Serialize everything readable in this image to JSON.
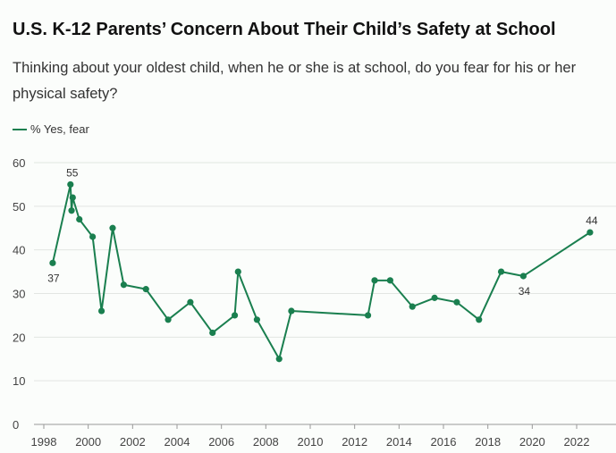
{
  "title": "U.S. K-12 Parents’ Concern About Their Child’s Safety at School",
  "subtitle": "Thinking about your oldest child, when he or she is at school, do you fear for his or her physical safety?",
  "chart_data": {
    "type": "line",
    "title": "U.S. K-12 Parents’ Concern About Their Child’s Safety at School",
    "xlabel": "",
    "ylabel": "",
    "xlim": [
      1998,
      2023.5
    ],
    "ylim": [
      0,
      60
    ],
    "grid": true,
    "legend_placement": "top-left",
    "color": "#1a7f4f",
    "x_ticks": [
      1998,
      2000,
      2002,
      2004,
      2006,
      2008,
      2010,
      2012,
      2014,
      2016,
      2018,
      2020,
      2022
    ],
    "y_ticks": [
      0,
      10,
      20,
      30,
      40,
      50,
      60
    ],
    "series": [
      {
        "name": "% Yes, fear",
        "x": [
          1998.4,
          1999.2,
          1999.25,
          1999.3,
          1999.6,
          2000.2,
          2000.6,
          2001.1,
          2001.6,
          2002.6,
          2003.6,
          2004.6,
          2005.6,
          2006.6,
          2006.75,
          2007.6,
          2008.6,
          2009.15,
          2012.6,
          2012.9,
          2013.6,
          2014.6,
          2015.6,
          2016.6,
          2017.6,
          2018.6,
          2019.6,
          2022.6
        ],
        "values": [
          37,
          55,
          49,
          52,
          47,
          43,
          26,
          45,
          32,
          31,
          24,
          28,
          21,
          25,
          35,
          24,
          15,
          26,
          25,
          33,
          33,
          27,
          29,
          28,
          24,
          35,
          34,
          44
        ]
      }
    ],
    "annotations": [
      {
        "x": 1998.4,
        "value": 37,
        "text": "37",
        "pos": "below"
      },
      {
        "x": 1999.2,
        "value": 55,
        "text": "55",
        "pos": "above"
      },
      {
        "x": 2019.6,
        "value": 34,
        "text": "34",
        "pos": "below"
      },
      {
        "x": 2022.6,
        "value": 44,
        "text": "44",
        "pos": "above"
      }
    ]
  }
}
